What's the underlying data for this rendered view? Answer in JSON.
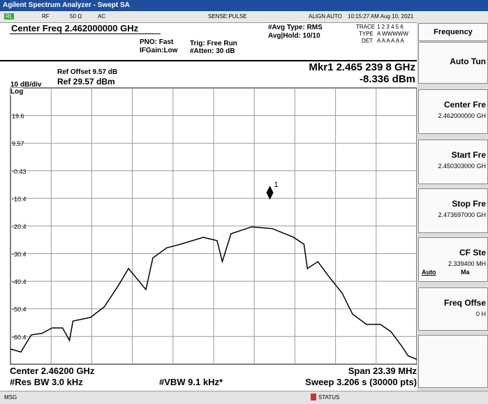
{
  "title_bar": "Agilent Spectrum Analyzer - Swept SA",
  "status_row": {
    "rl": "RL",
    "rf": "RF",
    "impedance": "50 Ω",
    "coupling": "AC",
    "sense": "SENSE:PULSE",
    "align": "ALIGN AUTO",
    "datetime": "10:15:27 AM Aug 10, 2021"
  },
  "header": {
    "center_freq": "Center Freq 2.462000000 GHz",
    "pno": "PNO: Fast",
    "ifgain": "IFGain:Low",
    "trig": "Trig: Free Run",
    "atten": "#Atten: 30 dB",
    "avg_type": "#Avg Type: RMS",
    "avg_hold": "Avg|Hold: 10/10",
    "trace_label": "TRACE",
    "trace_nums": "1 2 3 4 5 6",
    "type_label": "TYPE",
    "type_vals": "A WWWWW",
    "det_label": "DET",
    "det_vals": "A A A A A A"
  },
  "softkeys": {
    "title": "Frequency",
    "keys": [
      {
        "label": "Auto Tun"
      },
      {
        "label": "Center Fre",
        "value": "2.462000000 GH"
      },
      {
        "label": "Start Fre",
        "value": "2.450303000 GH"
      },
      {
        "label": "Stop Fre",
        "value": "2.473697000 GH"
      },
      {
        "label": "CF Ste",
        "value": "2.339400 MH",
        "auto": "Auto",
        "man": "Ma"
      },
      {
        "label": "Freq Offse",
        "value": "0 H"
      }
    ]
  },
  "plot": {
    "scale": "10 dB/div",
    "log": "Log",
    "ref_offset": "Ref Offset 9.57 dB",
    "ref": "Ref 29.57 dBm",
    "marker_freq": "Mkr1 2.465 239 8 GHz",
    "marker_amp": "-8.336 dBm",
    "marker": {
      "label": "1",
      "x": 2.4652398,
      "y": -8.336
    },
    "xlim": [
      2.450303,
      2.473697
    ],
    "ylim": [
      -70.43,
      29.57
    ],
    "yticks": [
      19.6,
      9.57,
      -0.43,
      -10.4,
      -20.4,
      -30.4,
      -40.4,
      -50.4,
      -60.4
    ],
    "trace": {
      "color": "#000000",
      "x": [
        2.4503,
        2.4509,
        2.4515,
        2.4521,
        2.4527,
        2.4533,
        2.4537,
        2.4539,
        2.4549,
        2.4557,
        2.4565,
        2.4571,
        2.4581,
        2.4585,
        2.4593,
        2.4601,
        2.4614,
        2.4622,
        2.4625,
        2.463,
        2.4642,
        2.4654,
        2.4666,
        2.4672,
        2.4674,
        2.468,
        2.4686,
        2.4694,
        2.47,
        2.4708,
        2.4716,
        2.4722,
        2.4728,
        2.4732,
        2.4737
      ],
      "values": [
        -64.9,
        -66,
        -59.8,
        -59.3,
        -57.3,
        -57.3,
        -61.8,
        -54.8,
        -53.5,
        -49.7,
        -42.1,
        -35.8,
        -43.4,
        -32,
        -28.3,
        -27,
        -24.5,
        -25.7,
        -33.3,
        -23.2,
        -20.7,
        -21.4,
        -24.5,
        -27,
        -35.8,
        -33.3,
        -38.4,
        -44.7,
        -52.3,
        -56,
        -56,
        -58.6,
        -63.6,
        -67.4,
        -68.7
      ]
    }
  },
  "footer": {
    "center": "Center 2.46200 GHz",
    "span": "Span 23.39 MHz",
    "rbw": "#Res BW 3.0 kHz",
    "vbw": "#VBW 9.1 kHz*",
    "sweep": "Sweep  3.206 s (30000 pts)"
  },
  "status_bar": {
    "msg": "MSG",
    "status": "STATUS"
  }
}
